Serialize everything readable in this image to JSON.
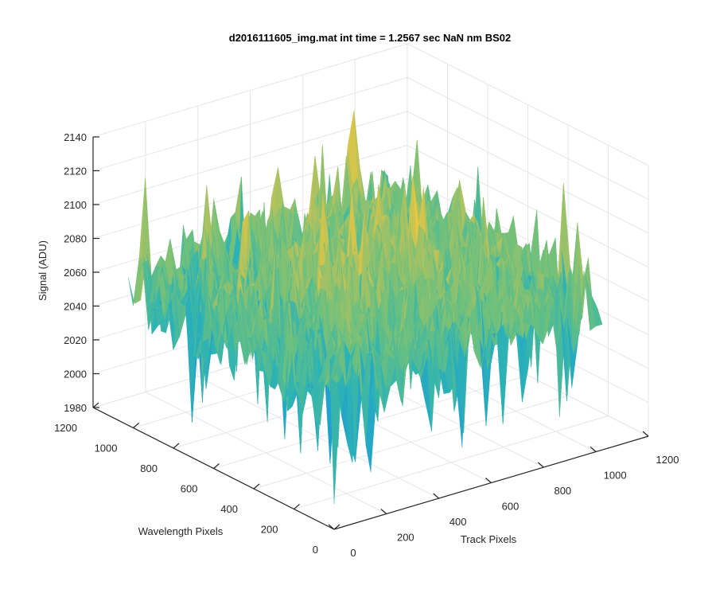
{
  "chart_data": {
    "type": "surface",
    "title": "d2016111605_img.mat int time = 1.2567 sec  NaN nm BS02",
    "xlabel": "Track Pixels",
    "ylabel": "Wavelength Pixels",
    "zlabel": "Signal (ADU)",
    "xlim": [
      0,
      1200
    ],
    "ylim": [
      0,
      1200
    ],
    "zlim": [
      1980,
      2140
    ],
    "xticks": [
      0,
      200,
      400,
      600,
      800,
      1000,
      1200
    ],
    "yticks": [
      0,
      200,
      400,
      600,
      800,
      1000,
      1200
    ],
    "zticks": [
      1980,
      2000,
      2020,
      2040,
      2060,
      2080,
      2100,
      2120,
      2140
    ],
    "xtick_labels": [
      "0",
      "200",
      "400",
      "600",
      "800",
      "1000",
      "1200"
    ],
    "ytick_labels": [
      "0",
      "200",
      "400",
      "600",
      "800",
      "1000",
      "1200"
    ],
    "ztick_labels": [
      "1980",
      "2000",
      "2020",
      "2040",
      "2060",
      "2080",
      "2100",
      "2120",
      "2140"
    ],
    "data_extent": {
      "x": [
        0,
        1024
      ],
      "y": [
        0,
        1024
      ]
    },
    "signal_mean": 2062,
    "signal_min_approx": 1995,
    "signal_max_approx": 2135,
    "colormap": "parula",
    "colors": [
      "#0d6fd8",
      "#1f9bd6",
      "#2cb3b5",
      "#6cc07e",
      "#b8c25b",
      "#f2c73a"
    ],
    "grid": true,
    "view": "3d-isometric"
  }
}
